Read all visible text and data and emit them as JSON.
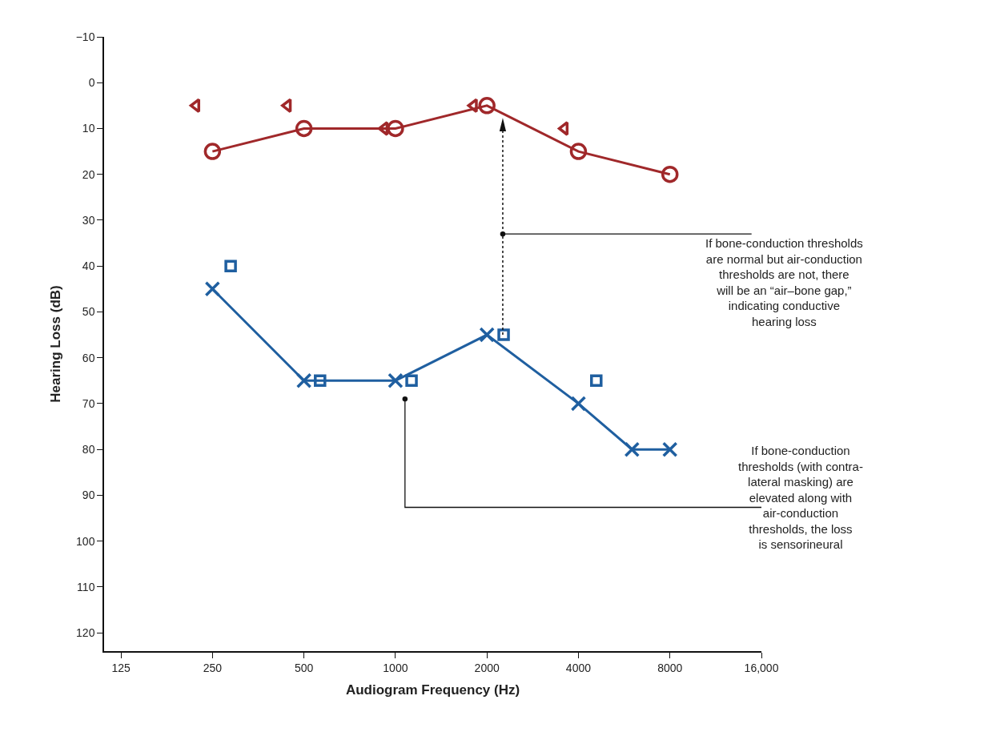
{
  "chart_data": {
    "type": "line",
    "xlabel": "Audiogram Frequency (Hz)",
    "ylabel": "Hearing Loss (dB)",
    "log": "x",
    "xlim": [
      110,
      16000
    ],
    "xticks": [
      125,
      250,
      500,
      1000,
      2000,
      4000,
      8000,
      {
        "value": 16000,
        "label": "16,000"
      }
    ],
    "ylim": [
      124,
      -10
    ],
    "yticks": [
      {
        "value": -10,
        "label": "−10"
      },
      0,
      10,
      20,
      30,
      40,
      50,
      60,
      70,
      80,
      90,
      100,
      110,
      120
    ],
    "series": [
      {
        "marker": "circle",
        "color": "#a0282a",
        "x": [
          250,
          500,
          1000,
          2000,
          4000,
          8000
        ],
        "values": [
          15,
          10,
          10,
          5,
          15,
          20
        ]
      },
      {
        "type": "scatter",
        "marker": "triangle",
        "color": "#a0282a",
        "x": [
          221,
          442,
          920,
          1810,
          3600
        ],
        "values": [
          5,
          5,
          10,
          5,
          10
        ]
      },
      {
        "marker": "cross",
        "color": "#1f5fa0",
        "x": [
          250,
          500,
          1000,
          2000,
          4000,
          6000,
          8000
        ],
        "values": [
          45,
          65,
          65,
          55,
          70,
          80,
          80
        ]
      },
      {
        "type": "scatter",
        "marker": "square",
        "color": "#1f5fa0",
        "x": [
          287,
          565,
          1130,
          2270,
          4580
        ],
        "values": [
          40,
          65,
          65,
          55,
          65
        ]
      }
    ],
    "annotations": [
      {
        "text": "If bone-conduction thresholds\nare normal but air-conduction\nthresholds are not, there\nwill be an “air–bone gap,”\nindicating conductive\nhearing loss",
        "x": 2255,
        "y": 33
      },
      {
        "text": "If bone-conduction\nthresholds (with contra-\nlateral masking) are\nelevated along with\nair-conduction\nthresholds, the loss\nis sensorineural",
        "x": 1075,
        "y": 69
      }
    ]
  }
}
